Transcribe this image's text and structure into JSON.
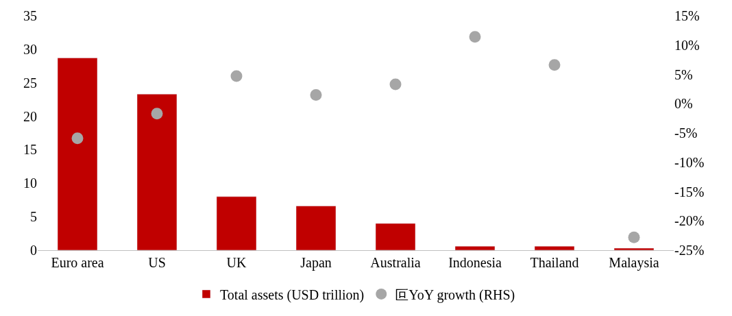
{
  "chart_data": {
    "type": "bar",
    "categories": [
      "Euro area",
      "US",
      "UK",
      "Japan",
      "Australia",
      "Indonesia",
      "Thailand",
      "Malaysia"
    ],
    "series": [
      {
        "name": "Total assets (USD trillion)",
        "color": "#c00000",
        "values": [
          28.7,
          23.3,
          8.0,
          6.6,
          4.0,
          0.6,
          0.6,
          0.3
        ]
      },
      {
        "name": "叵YoY growth (RHS)",
        "type": "scatter",
        "axis": "y2",
        "color": "#a6a6a6",
        "values": [
          -5.9,
          -1.7,
          4.7,
          1.5,
          3.3,
          11.4,
          6.6,
          -22.8
        ]
      }
    ],
    "ylim": [
      0,
      35
    ],
    "yticks": [
      0,
      5,
      10,
      15,
      20,
      25,
      30,
      35
    ],
    "y2lim": [
      -25,
      15
    ],
    "y2ticks": [
      {
        "value": -25,
        "label": "-25%"
      },
      {
        "value": -20,
        "label": "-20%"
      },
      {
        "value": -15,
        "label": "-15%"
      },
      {
        "value": -10,
        "label": "-10%"
      },
      {
        "value": -5,
        "label": "-5%"
      },
      {
        "value": 0,
        "label": "0%"
      },
      {
        "value": 5,
        "label": "5%"
      },
      {
        "value": 10,
        "label": "10%"
      },
      {
        "value": 15,
        "label": "15%"
      }
    ],
    "legend": "bottom",
    "marker": "circle"
  }
}
